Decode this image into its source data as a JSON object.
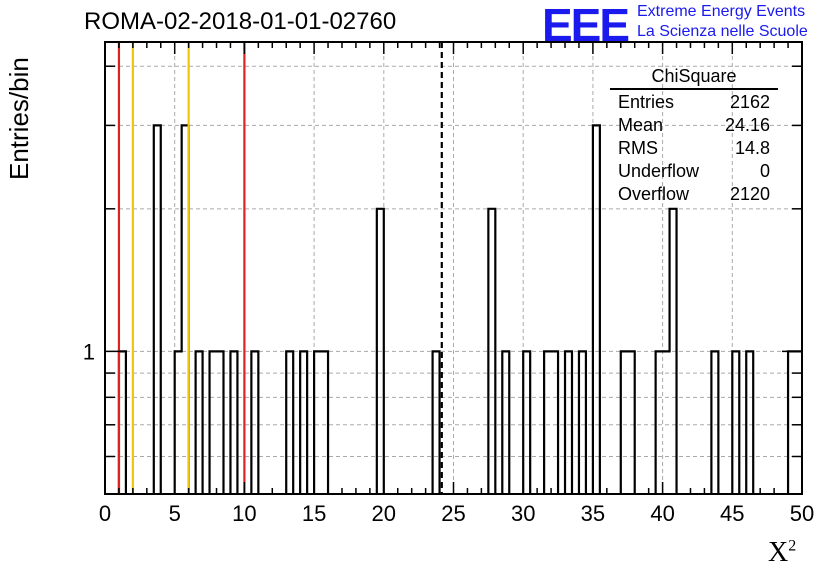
{
  "title": "ROMA-02-2018-01-01-02760",
  "logo": {
    "mark": "EEE",
    "line1": "Extreme Energy Events",
    "line2": "La Scienza nelle Scuole"
  },
  "colors": {
    "logo": "#1a1aee",
    "histogram": "#000000",
    "red_line": "#dd2222",
    "yellow_line": "#f2c40a",
    "grid": "#aaaaaa"
  },
  "stats": {
    "title": "ChiSquare",
    "rows": [
      {
        "label": "Entries",
        "value": "2162"
      },
      {
        "label": "Mean",
        "value": "24.16"
      },
      {
        "label": "RMS",
        "value": "14.8"
      },
      {
        "label": "Underflow",
        "value": "0"
      },
      {
        "label": "Overflow",
        "value": "2120"
      }
    ]
  },
  "chart_data": {
    "type": "bar",
    "histogram": "step",
    "xlabel": "X",
    "xlabel_superscript": "2",
    "ylabel": "Entries/bin",
    "xlim": [
      0,
      50
    ],
    "x_ticks": [
      0,
      5,
      10,
      15,
      20,
      25,
      30,
      35,
      40,
      45,
      50
    ],
    "y_scale": "log",
    "ylim": [
      0.5,
      4.5
    ],
    "y_tick_labels": [
      {
        "value": 1,
        "label": "1"
      }
    ],
    "grid": true,
    "bin_width": 0.5,
    "bins": [
      {
        "x": 1.0,
        "count": 1
      },
      {
        "x": 3.5,
        "count": 3
      },
      {
        "x": 5.0,
        "count": 1
      },
      {
        "x": 5.5,
        "count": 3
      },
      {
        "x": 6.5,
        "count": 1
      },
      {
        "x": 7.5,
        "count": 1
      },
      {
        "x": 8.0,
        "count": 1
      },
      {
        "x": 9.0,
        "count": 1
      },
      {
        "x": 10.5,
        "count": 1
      },
      {
        "x": 13.0,
        "count": 1
      },
      {
        "x": 14.0,
        "count": 1
      },
      {
        "x": 15.0,
        "count": 1
      },
      {
        "x": 15.5,
        "count": 1
      },
      {
        "x": 19.5,
        "count": 2
      },
      {
        "x": 23.5,
        "count": 1
      },
      {
        "x": 27.5,
        "count": 2
      },
      {
        "x": 28.5,
        "count": 1
      },
      {
        "x": 30.0,
        "count": 1
      },
      {
        "x": 31.5,
        "count": 1
      },
      {
        "x": 32.0,
        "count": 1
      },
      {
        "x": 33.0,
        "count": 1
      },
      {
        "x": 34.0,
        "count": 1
      },
      {
        "x": 35.0,
        "count": 3
      },
      {
        "x": 37.0,
        "count": 1
      },
      {
        "x": 37.5,
        "count": 1
      },
      {
        "x": 39.5,
        "count": 1
      },
      {
        "x": 40.0,
        "count": 1
      },
      {
        "x": 40.5,
        "count": 2
      },
      {
        "x": 43.5,
        "count": 1
      },
      {
        "x": 45.0,
        "count": 1
      },
      {
        "x": 46.0,
        "count": 1
      },
      {
        "x": 49.0,
        "count": 1
      },
      {
        "x": 49.5,
        "count": 1
      }
    ],
    "vertical_lines": [
      {
        "x": 1.0,
        "color": "red"
      },
      {
        "x": 2.0,
        "color": "yellow"
      },
      {
        "x": 6.0,
        "color": "yellow"
      },
      {
        "x": 10.0,
        "color": "red"
      },
      {
        "x": 24.16,
        "color": "black",
        "style": "dashed"
      }
    ]
  }
}
